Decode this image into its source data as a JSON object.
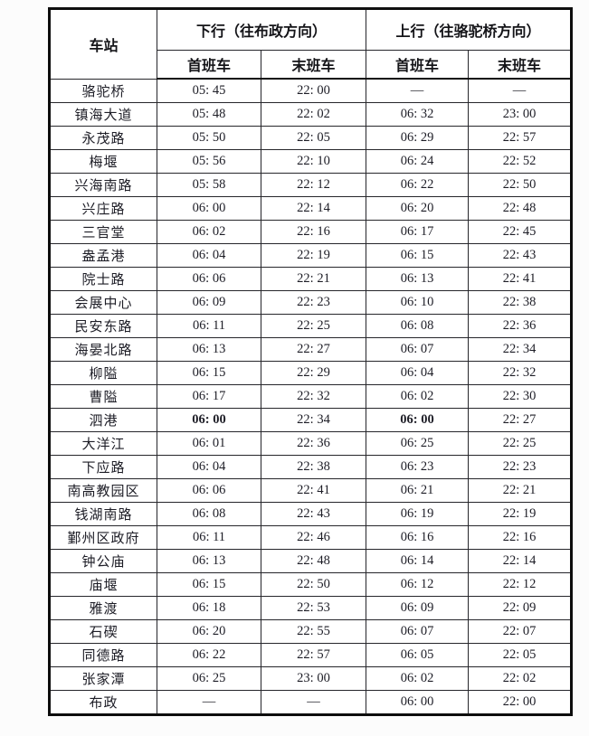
{
  "table": {
    "corner_header": "车站",
    "group_headers": {
      "down": "下行（往布政方向）",
      "up": "上行（往骆驼桥方向）"
    },
    "sub_headers": {
      "down_first": "首班车",
      "down_last": "末班车",
      "up_first": "首班车",
      "up_last": "末班车"
    },
    "colors": {
      "border": "#0d0d0d",
      "text": "#1d1d26",
      "background": "#ffffff"
    },
    "rows": [
      {
        "station": "骆驼桥",
        "times": [
          "05: 45",
          "22: 00",
          "—",
          "—"
        ]
      },
      {
        "station": "镇海大道",
        "times": [
          "05: 48",
          "22: 02",
          "06: 32",
          "23: 00"
        ]
      },
      {
        "station": "永茂路",
        "times": [
          "05: 50",
          "22: 05",
          "06: 29",
          "22: 57"
        ]
      },
      {
        "station": "梅堰",
        "times": [
          "05: 56",
          "22: 10",
          "06: 24",
          "22: 52"
        ]
      },
      {
        "station": "兴海南路",
        "times": [
          "05: 58",
          "22: 12",
          "06: 22",
          "22: 50"
        ]
      },
      {
        "station": "兴庄路",
        "times": [
          "06: 00",
          "22: 14",
          "06: 20",
          "22: 48"
        ]
      },
      {
        "station": "三官堂",
        "times": [
          "06: 02",
          "22: 16",
          "06: 17",
          "22: 45"
        ]
      },
      {
        "station": "盎孟港",
        "times": [
          "06: 04",
          "22: 19",
          "06: 15",
          "22: 43"
        ]
      },
      {
        "station": "院士路",
        "times": [
          "06: 06",
          "22: 21",
          "06: 13",
          "22: 41"
        ]
      },
      {
        "station": "会展中心",
        "times": [
          "06: 09",
          "22: 23",
          "06: 10",
          "22: 38"
        ]
      },
      {
        "station": "民安东路",
        "times": [
          "06: 11",
          "22: 25",
          "06: 08",
          "22: 36"
        ]
      },
      {
        "station": "海晏北路",
        "times": [
          "06: 13",
          "22: 27",
          "06: 07",
          "22: 34"
        ]
      },
      {
        "station": "柳隘",
        "times": [
          "06: 15",
          "22: 29",
          "06: 04",
          "22: 32"
        ]
      },
      {
        "station": "曹隘",
        "times": [
          "06: 17",
          "22: 32",
          "06: 02",
          "22: 30"
        ]
      },
      {
        "station": "泗港",
        "times": [
          "06: 00",
          "22: 34",
          "06: 00",
          "22: 27"
        ],
        "bold_cols": [
          0,
          2
        ]
      },
      {
        "station": "大洋江",
        "times": [
          "06: 01",
          "22: 36",
          "06: 25",
          "22: 25"
        ]
      },
      {
        "station": "下应路",
        "times": [
          "06: 04",
          "22: 38",
          "06: 23",
          "22: 23"
        ]
      },
      {
        "station": "南高教园区",
        "times": [
          "06: 06",
          "22: 41",
          "06: 21",
          "22: 21"
        ]
      },
      {
        "station": "钱湖南路",
        "times": [
          "06: 08",
          "22: 43",
          "06: 19",
          "22: 19"
        ]
      },
      {
        "station": "鄞州区政府",
        "times": [
          "06: 11",
          "22: 46",
          "06: 16",
          "22: 16"
        ]
      },
      {
        "station": "钟公庙",
        "times": [
          "06: 13",
          "22: 48",
          "06: 14",
          "22: 14"
        ]
      },
      {
        "station": "庙堰",
        "times": [
          "06: 15",
          "22: 50",
          "06: 12",
          "22: 12"
        ]
      },
      {
        "station": "雅渡",
        "times": [
          "06: 18",
          "22: 53",
          "06: 09",
          "22: 09"
        ]
      },
      {
        "station": "石碶",
        "times": [
          "06: 20",
          "22: 55",
          "06: 07",
          "22: 07"
        ]
      },
      {
        "station": "同德路",
        "times": [
          "06: 22",
          "22: 57",
          "06: 05",
          "22: 05"
        ]
      },
      {
        "station": "张家潭",
        "times": [
          "06: 25",
          "23: 00",
          "06: 02",
          "22: 02"
        ]
      },
      {
        "station": "布政",
        "times": [
          "—",
          "—",
          "06: 00",
          "22: 00"
        ]
      }
    ]
  }
}
